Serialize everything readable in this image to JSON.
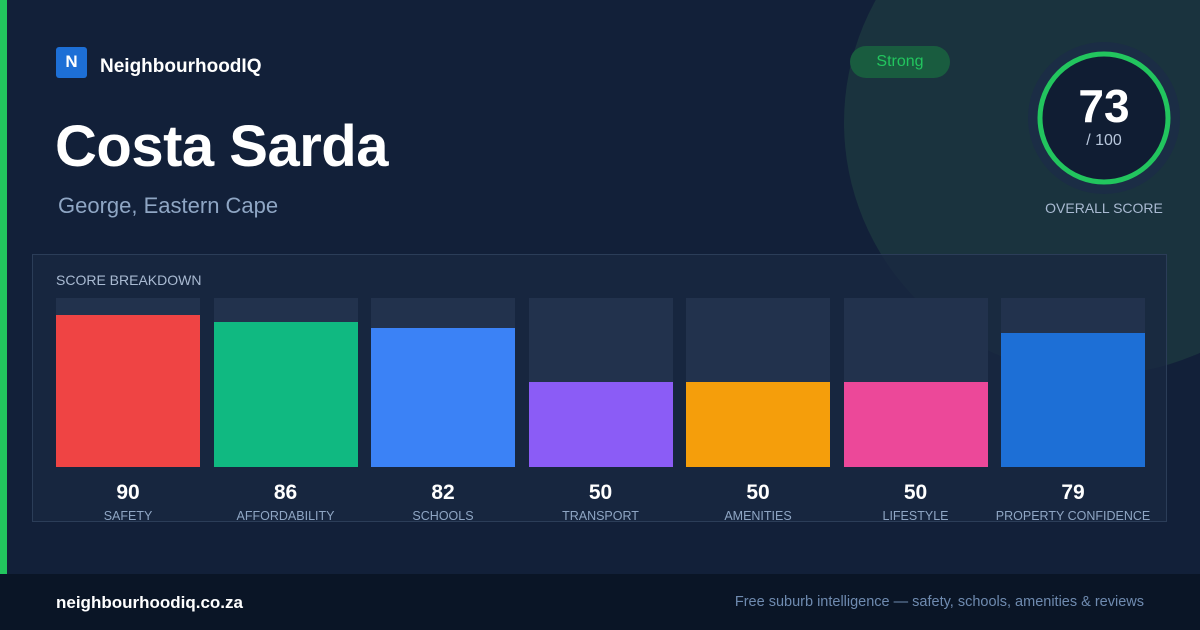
{
  "brand": {
    "logo_letter": "N",
    "name": "NeighbourhoodIQ",
    "accent_color": "#22c55e",
    "logo_color": "#1d6fd6"
  },
  "suburb": {
    "name": "Costa Sarda",
    "location": "George, Eastern Cape"
  },
  "badge": {
    "label": "Strong",
    "color": "#22c55e"
  },
  "overall": {
    "score": "73",
    "max": "/ 100",
    "caption": "OVERALL SCORE",
    "fraction": 0.73
  },
  "breakdown": {
    "label": "SCORE BREAKDOWN",
    "max": 100
  },
  "chart_data": {
    "type": "bar",
    "categories": [
      "SAFETY",
      "AFFORDABILITY",
      "SCHOOLS",
      "TRANSPORT",
      "AMENITIES",
      "LIFESTYLE",
      "PROPERTY CONFIDENCE"
    ],
    "values": [
      90,
      86,
      82,
      50,
      50,
      50,
      79
    ],
    "colors": [
      "#ef4444",
      "#10b981",
      "#3b82f6",
      "#8b5cf6",
      "#f59e0b",
      "#ec4899",
      "#1d6fd6"
    ],
    "ylim": [
      0,
      100
    ],
    "grid": false,
    "legend": "none"
  },
  "footer": {
    "url": "neighbourhoodiq.co.za",
    "tagline": "Free suburb intelligence — safety, schools, amenities & reviews"
  }
}
